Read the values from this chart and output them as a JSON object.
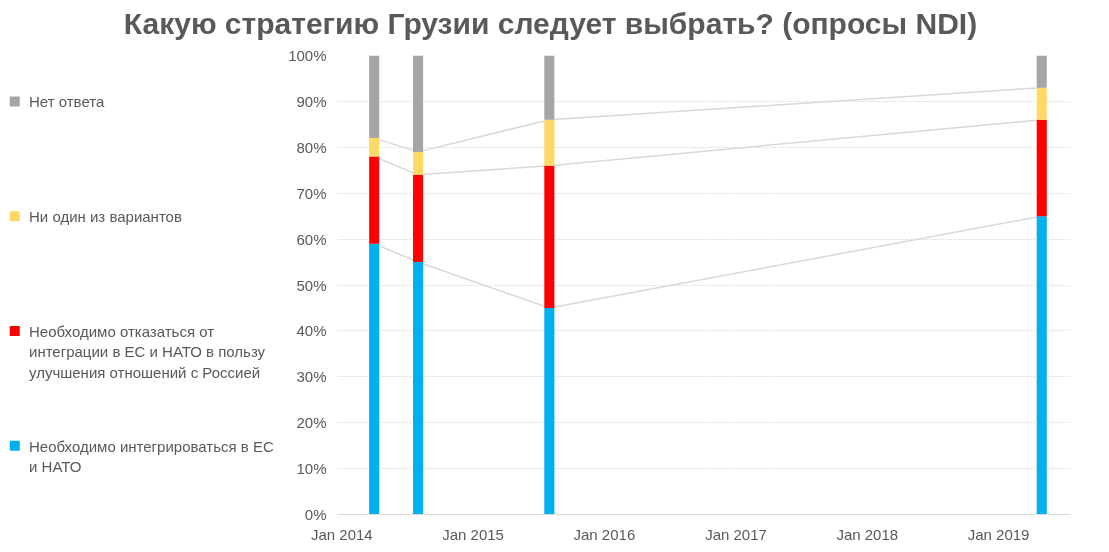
{
  "chart_data": {
    "type": "bar",
    "stacked": true,
    "title": "Какую стратегию Грузии следует выбрать? (опросы NDI)",
    "x": [
      "2014-04",
      "2014-08",
      "2015-08",
      "2019-05"
    ],
    "series": [
      {
        "name": "Необходимо интегрироваться в ЕС и НАТО",
        "color": "#00b0f0",
        "values": [
          59,
          55,
          45,
          65
        ]
      },
      {
        "name": "Необходимо отказаться от интеграции в ЕС и НАТО в пользу улучшения отношений с Россией",
        "color": "#ff0000",
        "values": [
          19,
          19,
          31,
          21
        ]
      },
      {
        "name": "Ни один из вариантов",
        "color": "#ffd966",
        "values": [
          4,
          5,
          10,
          7
        ]
      },
      {
        "name": "Нет ответа",
        "color": "#a5a5a5",
        "values": [
          18,
          21,
          14,
          7
        ]
      }
    ],
    "xlim": [
      "2013-12-20",
      "2019-07-20"
    ],
    "xticks": [
      {
        "value": "2014-01",
        "label": "Jan 2014"
      },
      {
        "value": "2015-01",
        "label": "Jan 2015"
      },
      {
        "value": "2016-01",
        "label": "Jan 2016"
      },
      {
        "value": "2017-01",
        "label": "Jan 2017"
      },
      {
        "value": "2018-01",
        "label": "Jan 2018"
      },
      {
        "value": "2019-01",
        "label": "Jan 2019"
      }
    ],
    "ylim": [
      0,
      100
    ],
    "yticks": [
      {
        "value": 0,
        "label": "0%"
      },
      {
        "value": 10,
        "label": "10%"
      },
      {
        "value": 20,
        "label": "20%"
      },
      {
        "value": 30,
        "label": "30%"
      },
      {
        "value": 40,
        "label": "40%"
      },
      {
        "value": 50,
        "label": "50%"
      },
      {
        "value": 60,
        "label": "60%"
      },
      {
        "value": 70,
        "label": "70%"
      },
      {
        "value": 80,
        "label": "80%"
      },
      {
        "value": 90,
        "label": "90%"
      },
      {
        "value": 100,
        "label": "100%"
      }
    ],
    "grid": "y",
    "legend": "left"
  }
}
